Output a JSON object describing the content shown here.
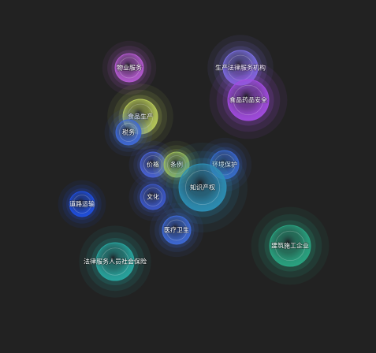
{
  "chart_data": {
    "type": "bubble",
    "title": "",
    "legend": "none",
    "grid": false,
    "bubbles": [
      {
        "label": "物业服务",
        "size": 18,
        "color": "#b45ad0"
      },
      {
        "label": "生产法律服务机构",
        "size": 22,
        "color": "#7a6ee0"
      },
      {
        "label": "食品药品安全",
        "size": 26,
        "color": "#a24ce0"
      },
      {
        "label": "食品生产",
        "size": 22,
        "color": "#b7c95a"
      },
      {
        "label": "税务",
        "size": 16,
        "color": "#3f6ad8"
      },
      {
        "label": "价格",
        "size": 16,
        "color": "#4a63d6"
      },
      {
        "label": "条例",
        "size": 16,
        "color": "#9fbf59"
      },
      {
        "label": "环境保护",
        "size": 18,
        "color": "#3a66cf"
      },
      {
        "label": "知识产权",
        "size": 30,
        "color": "#2d8fb5"
      },
      {
        "label": "文化",
        "size": 16,
        "color": "#3c58c9"
      },
      {
        "label": "道路运输",
        "size": 16,
        "color": "#1f4fe0"
      },
      {
        "label": "医疗卫生",
        "size": 18,
        "color": "#3e6ad6"
      },
      {
        "label": "法律服务人员社会保险",
        "size": 24,
        "color": "#28a6a0"
      },
      {
        "label": "建筑施工企业",
        "size": 26,
        "color": "#2aa582"
      }
    ]
  }
}
